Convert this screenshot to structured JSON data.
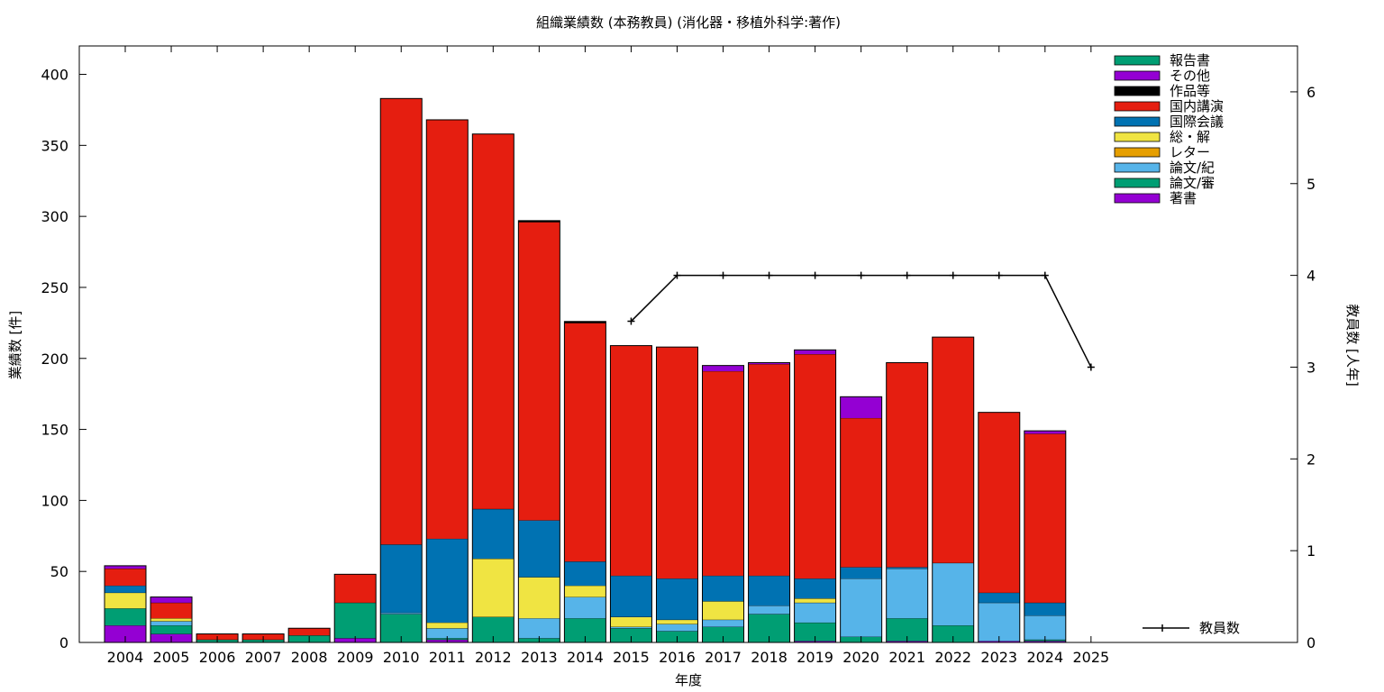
{
  "chart_data": {
    "type": "bar",
    "stacked": true,
    "title": "組織業績数 (本務教員) (消化器・移植外科学:著作)",
    "xlabel": "年度",
    "ylabel": "業績数 [件]",
    "y2label": "教員数 [人年]",
    "ylim": [
      0,
      420
    ],
    "y2lim": [
      0,
      6.5
    ],
    "yticks": [
      0,
      50,
      100,
      150,
      200,
      250,
      300,
      350,
      400
    ],
    "y2ticks": [
      0,
      1,
      2,
      3,
      4,
      5,
      6
    ],
    "grid": false,
    "legend_position": "top-right",
    "categories": [
      "2004",
      "2005",
      "2006",
      "2007",
      "2008",
      "2009",
      "2010",
      "2011",
      "2012",
      "2013",
      "2014",
      "2015",
      "2016",
      "2017",
      "2018",
      "2019",
      "2020",
      "2021",
      "2022",
      "2023",
      "2024",
      "2025"
    ],
    "series": [
      {
        "name": "著書",
        "color": "#9400d3",
        "values": [
          12,
          6,
          0,
          0,
          0,
          3,
          0,
          2,
          0,
          0,
          0,
          0,
          0,
          0,
          0,
          1,
          0,
          1,
          0,
          1,
          1,
          0
        ]
      },
      {
        "name": "論文/審",
        "color": "#009e73",
        "values": [
          12,
          6,
          2,
          2,
          5,
          25,
          20,
          1,
          18,
          3,
          17,
          10,
          8,
          11,
          20,
          13,
          4,
          16,
          12,
          0,
          1,
          0
        ]
      },
      {
        "name": "論文/紀",
        "color": "#56b4e9",
        "values": [
          0,
          3,
          0,
          0,
          0,
          0,
          1,
          7,
          0,
          14,
          15,
          1,
          5,
          5,
          6,
          14,
          41,
          35,
          44,
          27,
          17,
          0
        ]
      },
      {
        "name": "レター",
        "color": "#e69f00",
        "values": [
          0,
          0,
          0,
          0,
          0,
          0,
          0,
          0,
          0,
          0,
          0,
          0,
          0,
          0,
          0,
          0,
          0,
          0,
          0,
          0,
          0,
          0
        ]
      },
      {
        "name": "総・解",
        "color": "#f0e442",
        "values": [
          11,
          2,
          0,
          0,
          0,
          0,
          0,
          4,
          41,
          29,
          8,
          7,
          3,
          13,
          0,
          3,
          0,
          0,
          0,
          0,
          0,
          0
        ]
      },
      {
        "name": "国際会議",
        "color": "#0072b2",
        "values": [
          5,
          0,
          0,
          0,
          0,
          0,
          48,
          59,
          35,
          40,
          17,
          29,
          29,
          18,
          21,
          14,
          8,
          1,
          0,
          7,
          9,
          0
        ]
      },
      {
        "name": "国内講演",
        "color": "#e51e10",
        "values": [
          12,
          11,
          4,
          4,
          5,
          20,
          314,
          295,
          264,
          210,
          168,
          162,
          163,
          144,
          149,
          158,
          105,
          144,
          159,
          127,
          119,
          0
        ]
      },
      {
        "name": "作品等",
        "color": "#000000",
        "values": [
          0,
          0,
          0,
          0,
          0,
          0,
          0,
          0,
          0,
          1,
          1,
          0,
          0,
          0,
          0,
          0,
          0,
          0,
          0,
          0,
          0,
          0
        ]
      },
      {
        "name": "その他",
        "color": "#9400d3",
        "values": [
          2,
          4,
          0,
          0,
          0,
          0,
          0,
          0,
          0,
          0,
          0,
          0,
          0,
          4,
          1,
          3,
          15,
          0,
          0,
          0,
          2,
          0
        ]
      },
      {
        "name": "報告書",
        "color": "#009e73",
        "values": [
          0,
          0,
          0,
          0,
          0,
          0,
          0,
          0,
          0,
          0,
          0,
          0,
          0,
          0,
          0,
          0,
          0,
          0,
          0,
          0,
          0,
          0
        ]
      }
    ],
    "line_series": {
      "name": "教員数",
      "color": "#000000",
      "axis": "y2",
      "x": [
        "2015",
        "2016",
        "2017",
        "2018",
        "2019",
        "2020",
        "2021",
        "2022",
        "2023",
        "2024",
        "2025"
      ],
      "values": [
        3.5,
        4,
        4,
        4,
        4,
        4,
        4,
        4,
        4,
        4,
        3
      ]
    }
  }
}
